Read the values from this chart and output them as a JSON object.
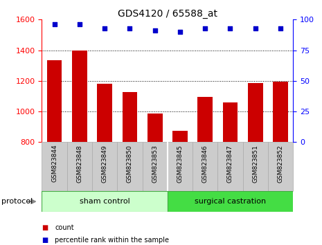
{
  "title": "GDS4120 / 65588_at",
  "samples": [
    "GSM823844",
    "GSM823848",
    "GSM823849",
    "GSM823850",
    "GSM823853",
    "GSM823845",
    "GSM823846",
    "GSM823847",
    "GSM823851",
    "GSM823852"
  ],
  "counts": [
    1335,
    1400,
    1180,
    1125,
    985,
    875,
    1095,
    1060,
    1185,
    1195
  ],
  "percentile_ranks": [
    96,
    96,
    93,
    93,
    91,
    90,
    93,
    93,
    93,
    93
  ],
  "ylim_left": [
    800,
    1600
  ],
  "ylim_right": [
    0,
    100
  ],
  "yticks_left": [
    800,
    1000,
    1200,
    1400,
    1600
  ],
  "yticks_right": [
    0,
    25,
    50,
    75,
    100
  ],
  "bar_color": "#cc0000",
  "dot_color": "#0000cc",
  "groups": [
    {
      "label": "sham control",
      "start": 0,
      "end": 5,
      "color_light": "#ccffcc",
      "color_dark": "#66dd66"
    },
    {
      "label": "surgical castration",
      "start": 5,
      "end": 10,
      "color_light": "#44dd44",
      "color_dark": "#44dd44"
    }
  ],
  "protocol_label": "protocol",
  "legend_count": "count",
  "legend_pct": "percentile rank within the sample",
  "bar_color_legend": "#cc0000",
  "dot_color_legend": "#0000cc",
  "col_bg": "#cccccc",
  "col_border": "#aaaaaa",
  "grid_yticks": [
    1000,
    1200,
    1400
  ]
}
